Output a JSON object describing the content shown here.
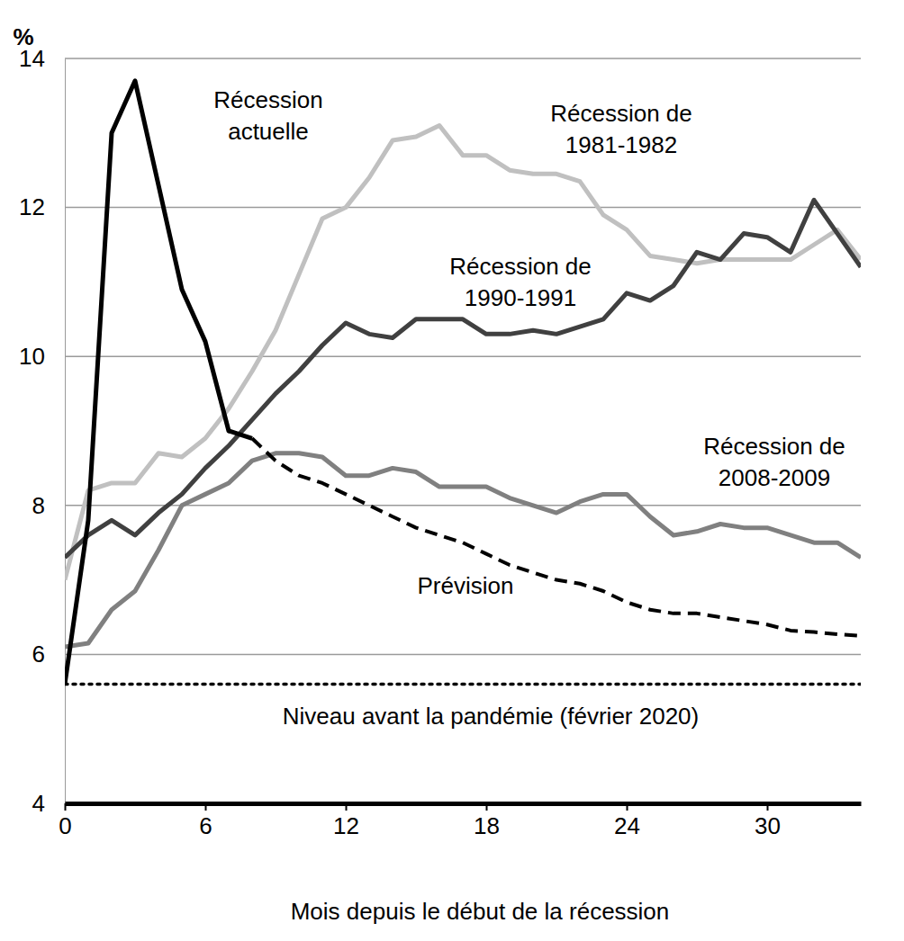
{
  "chart_data": {
    "type": "line",
    "y_label": "%",
    "x_label": "Mois depuis le début de la récession",
    "x": [
      0,
      1,
      2,
      3,
      4,
      5,
      6,
      7,
      8,
      9,
      10,
      11,
      12,
      13,
      14,
      15,
      16,
      17,
      18,
      19,
      20,
      21,
      22,
      23,
      24,
      25,
      26,
      27,
      28,
      29,
      30,
      31,
      32,
      33,
      34
    ],
    "xlim": [
      0,
      34
    ],
    "xticks": [
      0,
      6,
      12,
      18,
      24,
      30
    ],
    "ylim": [
      4,
      14
    ],
    "yticks": [
      4,
      6,
      8,
      10,
      12,
      14
    ],
    "grid": true,
    "series": [
      {
        "name": "Récession actuelle",
        "color": "#000000",
        "line_style": "solid",
        "values": [
          5.6,
          7.8,
          13.0,
          13.7,
          12.3,
          10.9,
          10.2,
          9.0,
          8.9,
          null,
          null,
          null,
          null,
          null,
          null,
          null,
          null,
          null,
          null,
          null,
          null,
          null,
          null,
          null,
          null,
          null,
          null,
          null,
          null,
          null,
          null,
          null,
          null,
          null,
          null
        ]
      },
      {
        "name": "Prévision",
        "color": "#000000",
        "line_style": "dashed",
        "values": [
          null,
          null,
          null,
          null,
          null,
          null,
          null,
          null,
          8.9,
          8.6,
          8.4,
          8.3,
          8.15,
          8.0,
          7.85,
          7.7,
          7.6,
          7.5,
          7.35,
          7.2,
          7.1,
          7.0,
          6.95,
          6.85,
          6.7,
          6.6,
          6.55,
          6.55,
          6.5,
          6.45,
          6.4,
          6.32,
          6.3,
          6.27,
          6.25
        ]
      },
      {
        "name": "Récession de 1981-1982",
        "color": "#c0c0c0",
        "line_style": "solid",
        "values": [
          7.0,
          8.2,
          8.3,
          8.3,
          8.7,
          8.65,
          8.9,
          9.3,
          9.8,
          10.35,
          11.1,
          11.85,
          12.0,
          12.4,
          12.9,
          12.95,
          13.1,
          12.7,
          12.7,
          12.5,
          12.45,
          12.45,
          12.35,
          11.9,
          11.7,
          11.35,
          11.3,
          11.25,
          11.3,
          11.3,
          11.3,
          11.3,
          11.5,
          11.7,
          11.3
        ]
      },
      {
        "name": "Récession de 1990-1991",
        "color": "#404040",
        "line_style": "solid",
        "values": [
          7.3,
          7.6,
          7.8,
          7.6,
          7.9,
          8.15,
          8.5,
          8.8,
          9.15,
          9.5,
          9.8,
          10.15,
          10.45,
          10.3,
          10.25,
          10.5,
          10.5,
          10.5,
          10.3,
          10.3,
          10.35,
          10.3,
          10.4,
          10.5,
          10.85,
          10.75,
          10.95,
          11.4,
          11.3,
          11.65,
          11.6,
          11.4,
          12.1,
          11.65,
          11.2
        ]
      },
      {
        "name": "Récession de 2008-2009",
        "color": "#808080",
        "line_style": "solid",
        "values": [
          6.1,
          6.15,
          6.6,
          6.85,
          7.4,
          8.0,
          8.15,
          8.3,
          8.6,
          8.7,
          8.7,
          8.65,
          8.4,
          8.4,
          8.5,
          8.45,
          8.25,
          8.25,
          8.25,
          8.1,
          8.0,
          7.9,
          8.05,
          8.15,
          8.15,
          7.85,
          7.6,
          7.65,
          7.75,
          7.7,
          7.7,
          7.6,
          7.5,
          7.5,
          7.3
        ]
      },
      {
        "name": "Niveau avant la pandémie (février 2020)",
        "color": "#000000",
        "line_style": "dotted",
        "values": [
          5.6,
          5.6,
          5.6,
          5.6,
          5.6,
          5.6,
          5.6,
          5.6,
          5.6,
          5.6,
          5.6,
          5.6,
          5.6,
          5.6,
          5.6,
          5.6,
          5.6,
          5.6,
          5.6,
          5.6,
          5.6,
          5.6,
          5.6,
          5.6,
          5.6,
          5.6,
          5.6,
          5.6,
          5.6,
          5.6,
          5.6,
          5.6,
          5.6,
          5.6,
          5.6
        ]
      }
    ]
  }
}
